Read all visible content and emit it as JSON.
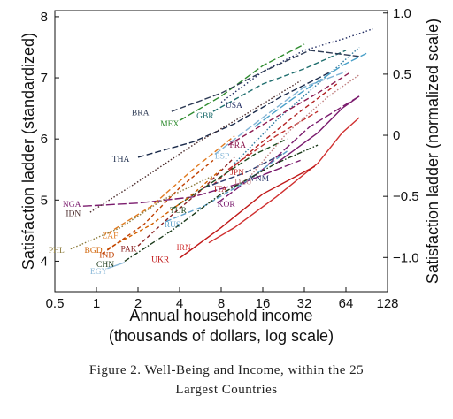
{
  "chart_data": {
    "type": "line",
    "xlabel_line1": "Annual household income",
    "xlabel_line2": "(thousands of dollars, log scale)",
    "ylabel_left": "Satisfaction ladder (standardized)",
    "ylabel_right": "Satisfaction ladder (normalized scale)",
    "x_scale": "log2",
    "xlim": [
      0.5,
      128
    ],
    "ylim": [
      3.5,
      8.1
    ],
    "right_axis": {
      "offset": 6.06,
      "factor": 0.5
    },
    "x_ticks": [
      0.5,
      1,
      2,
      4,
      8,
      16,
      32,
      64,
      128
    ],
    "x_tick_labels": [
      "0.5",
      "1",
      "2",
      "4",
      "8",
      "16",
      "32",
      "64",
      "128"
    ],
    "y_ticks": [
      4,
      5,
      6,
      7,
      8
    ],
    "y_tick_labels": [
      "4",
      "5",
      "6",
      "7",
      "8"
    ],
    "y2_ticks": [
      -1.0,
      -0.5,
      0,
      0.5,
      1.0
    ],
    "y2_tick_labels": [
      "−1.0",
      "−0.5",
      "0",
      "0.5",
      "1.0"
    ],
    "series": [
      {
        "name": "USA",
        "color": "#1f2a60",
        "dash": "1.5,2.5",
        "label_x": 8.6,
        "label_y": 6.55,
        "points": [
          [
            8,
            6.6
          ],
          [
            16,
            7.1
          ],
          [
            32,
            7.45
          ],
          [
            64,
            7.65
          ],
          [
            100,
            7.8
          ]
        ]
      },
      {
        "name": "GBR",
        "color": "#1f6e6e",
        "dash": "6,3",
        "label_x": 5.3,
        "label_y": 6.38,
        "points": [
          [
            7,
            6.45
          ],
          [
            16,
            6.9
          ],
          [
            32,
            7.15
          ],
          [
            64,
            7.45
          ]
        ]
      },
      {
        "name": "MEX",
        "color": "#2e8b2e",
        "dash": "8,3",
        "label_x": 2.9,
        "label_y": 6.25,
        "points": [
          [
            4,
            6.3
          ],
          [
            8,
            6.7
          ],
          [
            16,
            7.2
          ],
          [
            32,
            7.55
          ]
        ]
      },
      {
        "name": "BRA",
        "color": "#2e3b55",
        "dash": "7,3",
        "label_x": 1.8,
        "label_y": 6.43,
        "points": [
          [
            3.5,
            6.45
          ],
          [
            8,
            6.75
          ],
          [
            16,
            7.1
          ],
          [
            35,
            7.45
          ],
          [
            80,
            7.35
          ]
        ]
      },
      {
        "name": "THA",
        "color": "#1a2a4a",
        "dash": "7,3",
        "label_x": 1.3,
        "label_y": 5.67,
        "points": [
          [
            2,
            5.7
          ],
          [
            5,
            5.95
          ],
          [
            10,
            6.25
          ],
          [
            22,
            6.7
          ],
          [
            50,
            7.1
          ]
        ]
      },
      {
        "name": "FRA",
        "color": "#8b1a4f",
        "dash": "6,3",
        "label_x": 9.2,
        "label_y": 5.9,
        "points": [
          [
            9,
            5.9
          ],
          [
            18,
            6.3
          ],
          [
            40,
            6.75
          ],
          [
            70,
            7.1
          ]
        ]
      },
      {
        "name": "ESP",
        "color": "#7fb3d5",
        "dash": "8,3",
        "label_x": 7.2,
        "label_y": 5.72,
        "points": [
          [
            7.2,
            5.75
          ],
          [
            16,
            6.35
          ],
          [
            32,
            6.85
          ],
          [
            64,
            7.1
          ]
        ]
      },
      {
        "name": "ITA",
        "color": "#b22222",
        "dash": "5,3",
        "label_x": 7.1,
        "label_y": 5.18,
        "points": [
          [
            7,
            5.25
          ],
          [
            14,
            5.85
          ],
          [
            28,
            6.4
          ],
          [
            55,
            6.9
          ]
        ]
      },
      {
        "name": "VNM",
        "color": "#2e3b6e",
        "dash": "7,3",
        "label_x": 12.8,
        "label_y": 5.35,
        "points": [
          [
            6,
            5.2
          ],
          [
            12,
            5.45
          ],
          [
            22,
            5.75
          ]
        ]
      },
      {
        "name": "JPN",
        "color": "#c0302e",
        "dash": "6,3",
        "label_x": 9.3,
        "label_y": 5.45,
        "points": [
          [
            9,
            5.5
          ],
          [
            20,
            6.05
          ],
          [
            40,
            6.45
          ]
        ]
      },
      {
        "name": "KOR",
        "color": "#7b1c6e",
        "dash": "9,3",
        "label_x": 7.5,
        "label_y": 4.93,
        "points": [
          [
            7.5,
            4.95
          ],
          [
            16,
            5.5
          ],
          [
            35,
            6.2
          ],
          [
            80,
            6.7
          ]
        ]
      },
      {
        "name": "DEU",
        "color": "#c08080",
        "dash": "1.5,2",
        "label_x": 10,
        "label_y": 5.3,
        "points": [
          [
            12,
            5.3
          ],
          [
            24,
            6.1
          ],
          [
            48,
            6.7
          ],
          [
            80,
            7.05
          ]
        ]
      },
      {
        "name": "NGA",
        "color": "#7b1c6e",
        "dash": "10,3",
        "label_x": 0.57,
        "label_y": 4.93,
        "points": [
          [
            0.8,
            4.9
          ],
          [
            2,
            4.95
          ],
          [
            5,
            5.05
          ],
          [
            12,
            5.3
          ],
          [
            30,
            5.65
          ]
        ]
      },
      {
        "name": "IDN",
        "color": "#4a2a2a",
        "dash": "1.5,2",
        "label_x": 0.6,
        "label_y": 4.78,
        "points": [
          [
            0.9,
            4.8
          ],
          [
            2,
            5.3
          ],
          [
            5,
            5.9
          ],
          [
            12,
            6.4
          ],
          [
            30,
            6.95
          ]
        ]
      },
      {
        "name": "TUR",
        "color": "#1e4a1e",
        "dash": "6,3",
        "label_x": 3.4,
        "label_y": 4.83,
        "points": [
          [
            3.5,
            4.85
          ],
          [
            7,
            5.3
          ],
          [
            14,
            5.75
          ],
          [
            24,
            6.0
          ]
        ]
      },
      {
        "name": "RUS",
        "color": "#5a9ec9",
        "dash": "6,3",
        "label_x": 3.1,
        "label_y": 4.6,
        "points": [
          [
            3.2,
            4.65
          ],
          [
            6,
            4.9
          ],
          [
            12,
            5.3
          ],
          [
            24,
            5.8
          ]
        ]
      },
      {
        "name": "ZAF",
        "color": "#e07a20",
        "dash": "6,3",
        "label_x": 1.1,
        "label_y": 4.42,
        "points": [
          [
            1.2,
            4.45
          ],
          [
            2.5,
            4.9
          ],
          [
            5,
            5.5
          ],
          [
            10,
            6.05
          ]
        ]
      },
      {
        "name": "PAK",
        "color": "#8b2222",
        "dash": "4,3",
        "label_x": 1.5,
        "label_y": 4.2,
        "points": [
          [
            2,
            4.25
          ],
          [
            3.5,
            4.75
          ],
          [
            6,
            5.2
          ],
          [
            10,
            5.7
          ]
        ]
      },
      {
        "name": "BGD",
        "color": "#d06000",
        "dash": "4,3",
        "label_x": 0.82,
        "label_y": 4.18,
        "points": [
          [
            1.2,
            4.2
          ],
          [
            2.5,
            4.6
          ],
          [
            5,
            5.1
          ],
          [
            8,
            5.5
          ]
        ]
      },
      {
        "name": "IND",
        "color": "#c04000",
        "dash": "4,3",
        "label_x": 1.05,
        "label_y": 4.1,
        "points": [
          [
            1.1,
            4.12
          ],
          [
            2.2,
            4.6
          ],
          [
            4,
            5.2
          ],
          [
            7,
            5.65
          ]
        ]
      },
      {
        "name": "PHL",
        "color": "#8b7a3a",
        "dash": "1.5,2",
        "label_x": 0.45,
        "label_y": 4.18,
        "points": [
          [
            0.65,
            4.2
          ],
          [
            1.5,
            4.55
          ],
          [
            3,
            5.0
          ],
          [
            7,
            5.4
          ]
        ]
      },
      {
        "name": "CHN",
        "color": "#1a3a1a",
        "dash": "6,2,1.5,2",
        "label_x": 1.0,
        "label_y": 3.95,
        "points": [
          [
            1.6,
            4.0
          ],
          [
            3.5,
            4.5
          ],
          [
            8,
            5.1
          ],
          [
            20,
            5.6
          ],
          [
            40,
            5.9
          ]
        ]
      },
      {
        "name": "EGY",
        "color": "#8ab8d8",
        "dash": "",
        "label_x": 0.9,
        "label_y": 3.83,
        "points": [
          [
            1.2,
            3.88
          ],
          [
            1.6,
            3.98
          ]
        ]
      },
      {
        "name": "IRN",
        "color": "#d03030",
        "dash": "",
        "label_x": 3.8,
        "label_y": 4.22,
        "points": [
          [
            6.5,
            4.3
          ],
          [
            10,
            4.55
          ],
          [
            20,
            5.05
          ],
          [
            40,
            5.6
          ],
          [
            60,
            6.1
          ],
          [
            80,
            6.35
          ]
        ]
      },
      {
        "name": "UKR",
        "color": "#c01818",
        "dash": "",
        "label_x": 2.5,
        "label_y": 4.03,
        "points": [
          [
            4,
            4.05
          ],
          [
            8,
            4.55
          ],
          [
            16,
            5.1
          ],
          [
            38,
            5.55
          ]
        ]
      }
    ],
    "extra_lines": [
      {
        "color": "#2e7aa0",
        "dash": "1.5,2",
        "points": [
          [
            10,
            5.6
          ],
          [
            20,
            6.3
          ],
          [
            40,
            6.9
          ],
          [
            80,
            7.5
          ]
        ]
      },
      {
        "color": "#4aa0c8",
        "dash": "9,3",
        "points": [
          [
            14,
            6.2
          ],
          [
            30,
            6.75
          ],
          [
            60,
            7.2
          ],
          [
            90,
            7.4
          ]
        ]
      },
      {
        "color": "#7b1c6e",
        "dash": "",
        "points": [
          [
            20,
            5.6
          ],
          [
            40,
            6.1
          ],
          [
            60,
            6.5
          ],
          [
            80,
            6.7
          ]
        ]
      }
    ]
  },
  "caption": {
    "line1": "Figure 2. Well-Being and Income, within the 25",
    "line2": "Largest Countries"
  }
}
